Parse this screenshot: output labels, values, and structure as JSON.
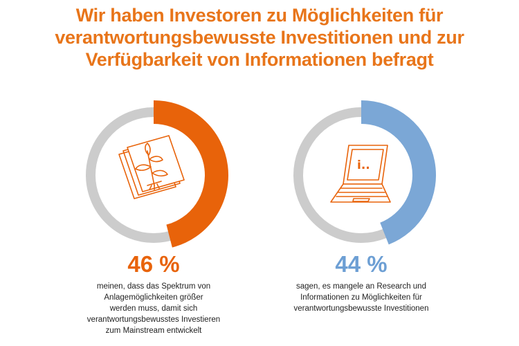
{
  "title_lines": [
    "Wir haben Investoren zu Möglichkeiten für",
    "verantwortungsbewusste Investitionen und zur",
    "Verfügbarkeit von Informationen befragt"
  ],
  "colors": {
    "orange": "#e8630a",
    "title": "#e8751a",
    "blue": "#7ba7d6",
    "track": "#cccccc"
  },
  "chart_data": [
    {
      "type": "pie",
      "variant": "donut",
      "value": 46,
      "value_label": "46 %",
      "icon": "plant-documents-icon",
      "color": "#e8630a",
      "description_lines": [
        "meinen, dass das Spektrum von",
        "Anlagemöglichkeiten größer",
        "werden muss, damit sich",
        "verantwortungsbewusstes Investieren",
        "zum Mainstream entwickelt"
      ]
    },
    {
      "type": "pie",
      "variant": "donut",
      "value": 44,
      "value_label": "44 %",
      "icon": "laptop-info-icon",
      "color": "#7ba7d6",
      "description_lines": [
        "sagen, es mangele an Research und",
        "Informationen zu Möglichkeiten für",
        "verantwortungsbewusste Investitionen"
      ]
    }
  ]
}
